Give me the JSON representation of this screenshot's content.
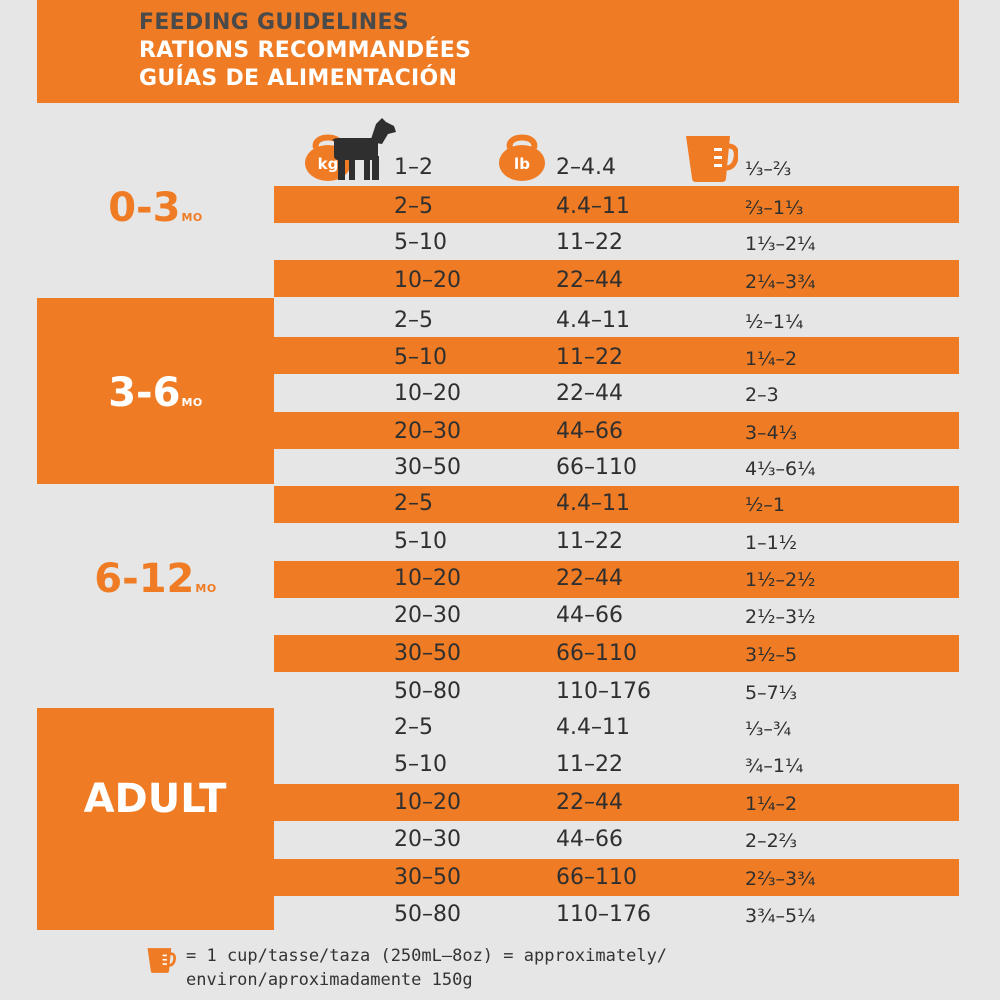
{
  "header": {
    "line1": "FEEDING GUIDELINES",
    "line2": "RATIONS RECOMMANDÉES",
    "line3": "GUÍAS DE ALIMENTACIÓN"
  },
  "icons": {
    "kg_label": "kg",
    "lb_label": "lb",
    "kg_icon": "kettlebell-icon",
    "dog_icon": "dog-icon",
    "lb_icon": "kettlebell-icon",
    "cup_icon": "measuring-cup-icon"
  },
  "colors": {
    "orange": "#ef7c24",
    "gray_bg": "#e6e6e6",
    "text": "#2f2f2f"
  },
  "groups": [
    {
      "age": "0-3",
      "unit": "MO"
    },
    {
      "age": "3-6",
      "unit": "MO"
    },
    {
      "age": "6-12",
      "unit": "MO"
    },
    {
      "age": "ADULT",
      "unit": ""
    }
  ],
  "rows": [
    {
      "kg": "1–2",
      "lb": "2–4.4",
      "cup": "⅓–⅔"
    },
    {
      "kg": "2–5",
      "lb": "4.4–11",
      "cup": "⅔–1⅓"
    },
    {
      "kg": "5–10",
      "lb": "11–22",
      "cup": "1⅓–2¼"
    },
    {
      "kg": "10–20",
      "lb": "22–44",
      "cup": "2¼–3¾"
    },
    {
      "kg": "2–5",
      "lb": "4.4–11",
      "cup": "½–1¼"
    },
    {
      "kg": "5–10",
      "lb": "11–22",
      "cup": "1¼–2"
    },
    {
      "kg": "10–20",
      "lb": "22–44",
      "cup": "2–3"
    },
    {
      "kg": "20–30",
      "lb": "44–66",
      "cup": "3–4⅓"
    },
    {
      "kg": "30–50",
      "lb": "66–110",
      "cup": "4⅓–6¼"
    },
    {
      "kg": "2–5",
      "lb": "4.4–11",
      "cup": "½–1"
    },
    {
      "kg": "5–10",
      "lb": "11–22",
      "cup": "1–1½"
    },
    {
      "kg": "10–20",
      "lb": "22–44",
      "cup": "1½–2½"
    },
    {
      "kg": "20–30",
      "lb": "44–66",
      "cup": "2½–3½"
    },
    {
      "kg": "30–50",
      "lb": "66–110",
      "cup": "3½–5"
    },
    {
      "kg": "50–80",
      "lb": "110–176",
      "cup": "5–7⅓"
    },
    {
      "kg": "2–5",
      "lb": "4.4–11",
      "cup": "⅓–¾"
    },
    {
      "kg": "5–10",
      "lb": "11–22",
      "cup": "¾–1¼"
    },
    {
      "kg": "10–20",
      "lb": "22–44",
      "cup": "1¼–2"
    },
    {
      "kg": "20–30",
      "lb": "44–66",
      "cup": "2–2⅔"
    },
    {
      "kg": "30–50",
      "lb": "66–110",
      "cup": "2⅔–3¾"
    },
    {
      "kg": "50–80",
      "lb": "110–176",
      "cup": "3¾–5¼"
    }
  ],
  "footer": {
    "line1": "= 1 cup/tasse/taza (250mL–8oz) = approximately/",
    "line2": "environ/aproximadamente 150g"
  }
}
